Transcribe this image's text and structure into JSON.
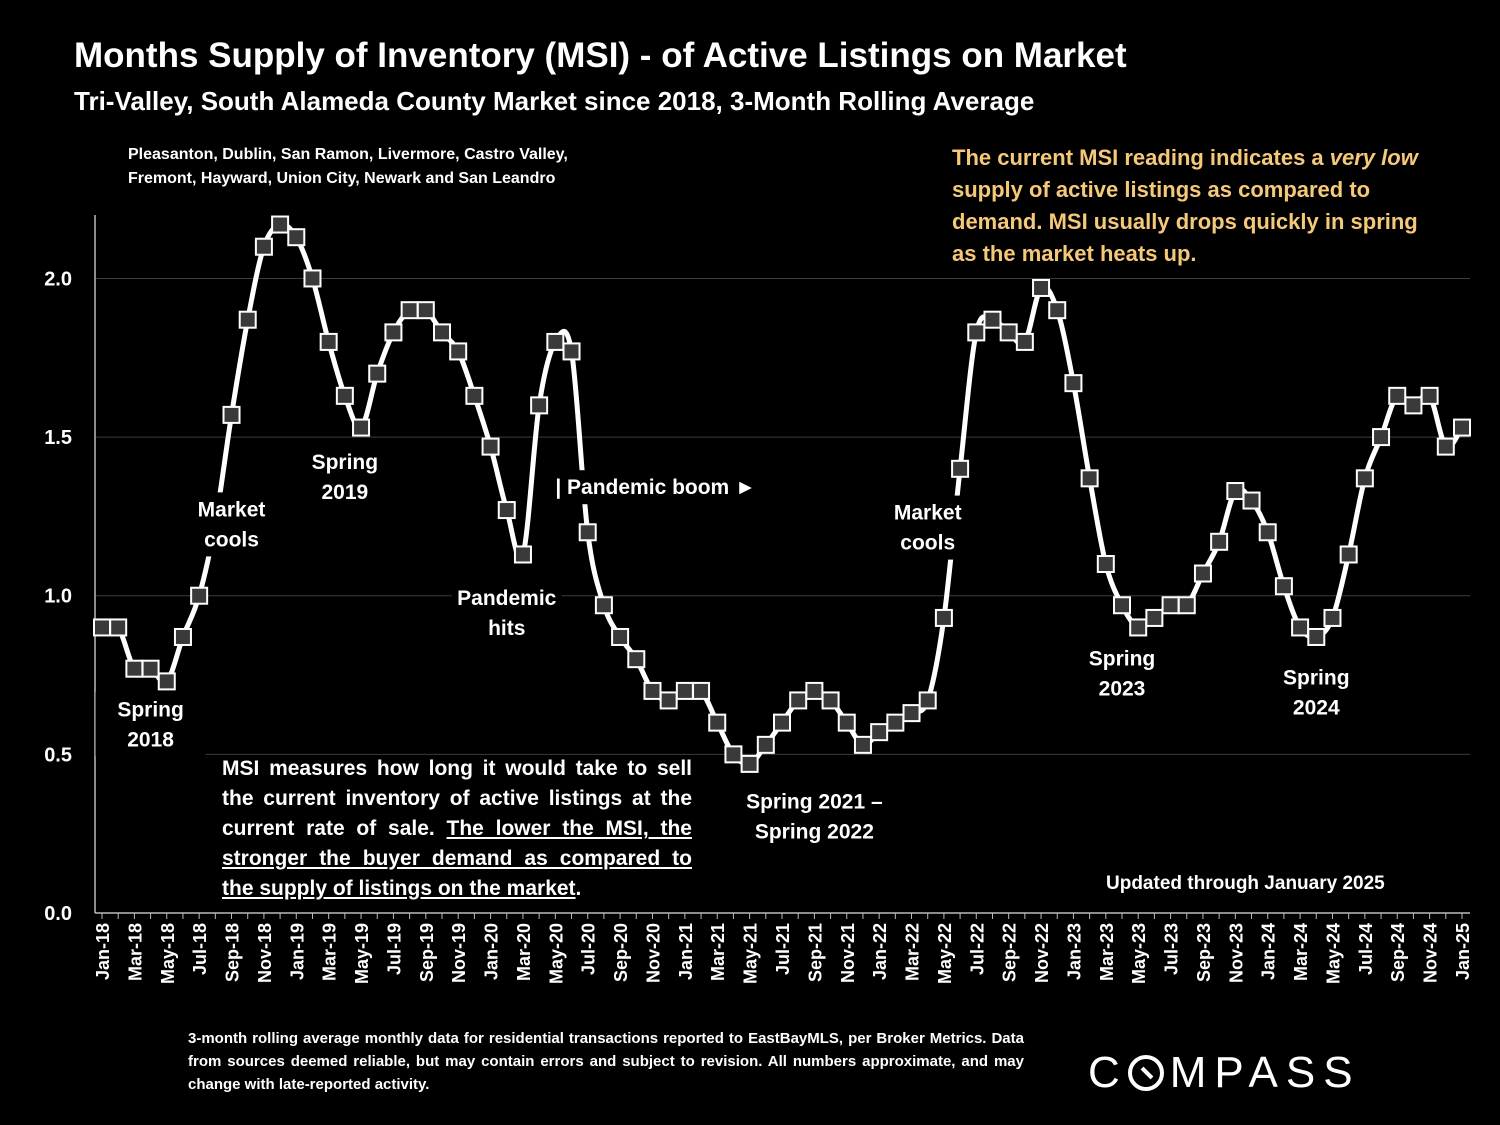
{
  "header": {
    "title": "Months Supply of Inventory (MSI) - of Active Listings on Market",
    "subtitle": "Tri-Valley, South Alameda County Market since 2018, 3-Month Rolling Average",
    "cities_line1": "Pleasanton, Dublin, San Ramon, Livermore, Castro Valley,",
    "cities_line2": "Fremont, Hayward, Union City, Newark and San Leandro"
  },
  "callout": {
    "part1": "The current MSI reading indicates a ",
    "em1": "very",
    "part2": " ",
    "em2": "low",
    "part3": " supply of active listings as compared to demand. MSI usually drops quickly in spring as the market heats up."
  },
  "explain": {
    "plain": "MSI measures how long it would take to sell the current inventory of active listings at the current rate of sale. ",
    "underlined": "The lower the MSI, the stronger the buyer demand as compared to the supply of listings on the market",
    "end": "."
  },
  "updated": "Updated through January 2025",
  "footnote": "3-month rolling average monthly data for residential transactions reported to EastBayMLS, per Broker Metrics. Data from sources deemed reliable, but may contain errors and subject to revision. All numbers approximate, and may change with late-reported activity.",
  "logo": {
    "pre": "C",
    "post": "MPASS"
  },
  "colors": {
    "background": "#000000",
    "line": "#ffffff",
    "marker_fill": "#3a3a3a",
    "callout": "#f6c97a",
    "grid": "#3c3c3c"
  },
  "chart_data": {
    "type": "line",
    "title": "Months Supply of Inventory (MSI) - of Active Listings on Market",
    "subtitle": "Tri-Valley, South Alameda County Market since 2018, 3-Month Rolling Average",
    "x": [
      "Jan-18",
      "Feb-18",
      "Mar-18",
      "Apr-18",
      "May-18",
      "Jun-18",
      "Jul-18",
      "Aug-18",
      "Sep-18",
      "Oct-18",
      "Nov-18",
      "Dec-18",
      "Jan-19",
      "Feb-19",
      "Mar-19",
      "Apr-19",
      "May-19",
      "Jun-19",
      "Jul-19",
      "Aug-19",
      "Sep-19",
      "Oct-19",
      "Nov-19",
      "Dec-19",
      "Jan-20",
      "Feb-20",
      "Mar-20",
      "Apr-20",
      "May-20",
      "Jun-20",
      "Jul-20",
      "Aug-20",
      "Sep-20",
      "Oct-20",
      "Nov-20",
      "Dec-20",
      "Jan-21",
      "Feb-21",
      "Mar-21",
      "Apr-21",
      "May-21",
      "Jun-21",
      "Jul-21",
      "Aug-21",
      "Sep-21",
      "Oct-21",
      "Nov-21",
      "Dec-21",
      "Jan-22",
      "Feb-22",
      "Mar-22",
      "Apr-22",
      "May-22",
      "Jun-22",
      "Jul-22",
      "Aug-22",
      "Sep-22",
      "Oct-22",
      "Nov-22",
      "Dec-22",
      "Jan-23",
      "Feb-23",
      "Mar-23",
      "Apr-23",
      "May-23",
      "Jun-23",
      "Jul-23",
      "Aug-23",
      "Sep-23",
      "Oct-23",
      "Nov-23",
      "Dec-23",
      "Jan-24",
      "Feb-24",
      "Mar-24",
      "Apr-24",
      "May-24",
      "Jun-24",
      "Jul-24",
      "Aug-24",
      "Sep-24",
      "Oct-24",
      "Nov-24",
      "Dec-24",
      "Jan-25"
    ],
    "x_tick_labels": [
      "Jan-18",
      "Mar-18",
      "May-18",
      "Jul-18",
      "Sep-18",
      "Nov-18",
      "Jan-19",
      "Mar-19",
      "May-19",
      "Jul-19",
      "Sep-19",
      "Nov-19",
      "Jan-20",
      "Mar-20",
      "May-20",
      "Jul-20",
      "Sep-20",
      "Nov-20",
      "Jan-21",
      "Mar-21",
      "May-21",
      "Jul-21",
      "Sep-21",
      "Nov-21",
      "Jan-22",
      "Mar-22",
      "May-22",
      "Jul-22",
      "Sep-22",
      "Nov-22",
      "Jan-23",
      "Mar-23",
      "May-23",
      "Jul-23",
      "Sep-23",
      "Nov-23",
      "Jan-24",
      "Mar-24",
      "May-24",
      "Jul-24",
      "Sep-24",
      "Nov-24",
      "Jan-25"
    ],
    "series": [
      {
        "values": [
          0.9,
          0.9,
          0.77,
          0.77,
          0.73,
          0.87,
          1.0,
          1.23,
          1.57,
          1.87,
          2.1,
          2.17,
          2.13,
          2.0,
          1.8,
          1.63,
          1.53,
          1.7,
          1.83,
          1.9,
          1.9,
          1.83,
          1.77,
          1.63,
          1.47,
          1.27,
          1.13,
          1.6,
          1.8,
          1.77,
          1.2,
          0.97,
          0.87,
          0.8,
          0.7,
          0.67,
          0.7,
          0.7,
          0.6,
          0.5,
          0.47,
          0.53,
          0.6,
          0.67,
          0.7,
          0.67,
          0.6,
          0.53,
          0.57,
          0.6,
          0.63,
          0.67,
          0.93,
          1.4,
          1.83,
          1.87,
          1.83,
          1.8,
          1.97,
          1.9,
          1.67,
          1.37,
          1.1,
          0.97,
          0.9,
          0.93,
          0.97,
          0.97,
          1.07,
          1.17,
          1.33,
          1.3,
          1.2,
          1.03,
          0.9,
          0.87,
          0.93,
          1.13,
          1.37,
          1.5,
          1.63,
          1.6,
          1.63,
          1.47,
          1.53
        ],
        "hidden_markers": [
          "Aug-18"
        ]
      }
    ],
    "ylim": [
      0,
      2.2
    ],
    "y_ticks": [
      "0.0",
      "0.5",
      "1.0",
      "1.5",
      "2.0"
    ],
    "grid": true,
    "annotations": [
      {
        "lines": [
          "Spring",
          "2018"
        ],
        "at": "Apr-18",
        "value": 0.62
      },
      {
        "lines": [
          "Market",
          "cools"
        ],
        "at": "Sep-18",
        "value": 1.25
      },
      {
        "lines": [
          "Spring",
          "2019"
        ],
        "at": "Apr-19",
        "value": 1.4
      },
      {
        "lines": [
          "Pandemic",
          "hits"
        ],
        "at": "Feb-20",
        "value": 0.97
      },
      {
        "lines": [
          "| Pandemic boom ►"
        ],
        "at": "May-20",
        "value": 1.32,
        "anchor": "start"
      },
      {
        "lines": [
          "Spring 2021 –",
          "Spring 2022"
        ],
        "at": "Sep-21",
        "value": 0.33
      },
      {
        "lines": [
          "Market",
          "cools"
        ],
        "at": "Apr-22",
        "value": 1.24
      },
      {
        "lines": [
          "Spring",
          "2023"
        ],
        "at": "Apr-23",
        "value": 0.78
      },
      {
        "lines": [
          "Spring",
          "2024"
        ],
        "at": "Apr-24",
        "value": 0.72
      }
    ]
  }
}
